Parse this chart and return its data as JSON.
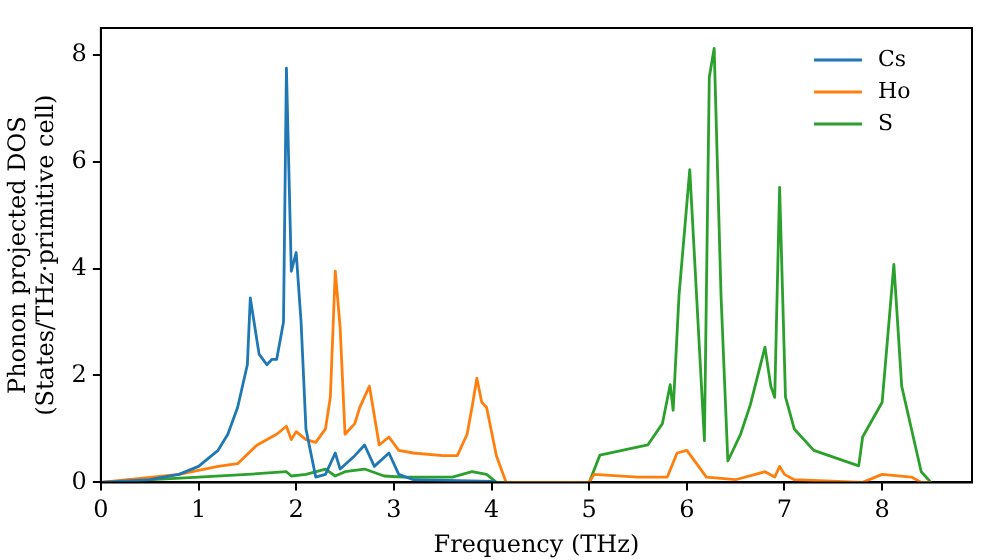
{
  "chart_data": {
    "type": "line",
    "xlabel": "Frequency (THz)",
    "ylabel": "Phonon projected DOS\n(States/THz·primitive cell)",
    "xlim": [
      0,
      8.92
    ],
    "ylim": [
      0,
      8.5
    ],
    "xticks": [
      0,
      1,
      2,
      3,
      4,
      5,
      6,
      7,
      8
    ],
    "yticks": [
      0,
      2,
      4,
      6,
      8
    ],
    "grid": false,
    "legend": "top right",
    "marker": "none",
    "line_style": "solid",
    "series": [
      {
        "name": "Cs",
        "color": "#1f77b4",
        "x": [
          0,
          0.5,
          0.8,
          1.0,
          1.2,
          1.3,
          1.4,
          1.5,
          1.53,
          1.62,
          1.7,
          1.75,
          1.8,
          1.87,
          1.9,
          1.95,
          2.0,
          2.05,
          2.1,
          2.2,
          2.3,
          2.4,
          2.45,
          2.6,
          2.7,
          2.8,
          2.95,
          3.05,
          3.2,
          4.0,
          4.05
        ],
        "values": [
          0,
          0.05,
          0.15,
          0.3,
          0.6,
          0.9,
          1.4,
          2.2,
          3.45,
          2.4,
          2.2,
          2.3,
          2.3,
          3.0,
          7.75,
          3.95,
          4.3,
          3.0,
          1.0,
          0.1,
          0.15,
          0.55,
          0.25,
          0.5,
          0.7,
          0.3,
          0.55,
          0.15,
          0.05,
          0.02,
          0
        ]
      },
      {
        "name": "Ho",
        "color": "#ff7f0e",
        "x": [
          0,
          0.8,
          1.2,
          1.4,
          1.6,
          1.8,
          1.9,
          1.95,
          2.0,
          2.1,
          2.2,
          2.3,
          2.35,
          2.4,
          2.45,
          2.5,
          2.6,
          2.65,
          2.75,
          2.85,
          2.95,
          3.05,
          3.2,
          3.5,
          3.65,
          3.75,
          3.8,
          3.85,
          3.9,
          3.95,
          4.05,
          4.15,
          5.0,
          5.05,
          5.5,
          5.8,
          5.9,
          6.0,
          6.1,
          6.2,
          6.5,
          6.7,
          6.8,
          6.9,
          6.95,
          7.0,
          7.1,
          7.8,
          8.0,
          8.3,
          8.4,
          8.5
        ],
        "values": [
          0,
          0.15,
          0.3,
          0.35,
          0.7,
          0.9,
          1.05,
          0.8,
          0.95,
          0.8,
          0.75,
          1.0,
          1.6,
          3.95,
          2.9,
          0.9,
          1.1,
          1.4,
          1.8,
          0.7,
          0.85,
          0.6,
          0.55,
          0.5,
          0.5,
          0.9,
          1.4,
          1.95,
          1.5,
          1.4,
          0.5,
          0,
          0,
          0.15,
          0.1,
          0.1,
          0.55,
          0.6,
          0.35,
          0.1,
          0.05,
          0.15,
          0.2,
          0.1,
          0.3,
          0.15,
          0.05,
          0,
          0.15,
          0.1,
          0,
          0
        ]
      },
      {
        "name": "S",
        "color": "#2ca02c",
        "x": [
          0,
          1.0,
          1.5,
          1.9,
          1.95,
          2.1,
          2.3,
          2.4,
          2.5,
          2.7,
          2.9,
          3.1,
          3.6,
          3.8,
          3.95,
          4.05,
          4.9,
          5.0,
          5.11,
          5.6,
          5.75,
          5.83,
          5.86,
          5.92,
          6.03,
          6.18,
          6.23,
          6.28,
          6.35,
          6.42,
          6.55,
          6.65,
          6.8,
          6.86,
          6.9,
          6.95,
          7.01,
          7.1,
          7.3,
          7.76,
          7.8,
          8.0,
          8.12,
          8.2,
          8.3,
          8.4,
          8.5
        ],
        "values": [
          0,
          0.1,
          0.15,
          0.2,
          0.12,
          0.15,
          0.25,
          0.12,
          0.2,
          0.25,
          0.12,
          0.1,
          0.1,
          0.2,
          0.15,
          0,
          0,
          0,
          0.51,
          0.7,
          1.1,
          1.83,
          1.35,
          3.5,
          5.85,
          0.78,
          7.58,
          8.12,
          3.5,
          0.4,
          0.9,
          1.45,
          2.53,
          1.8,
          1.59,
          5.52,
          1.6,
          1.0,
          0.6,
          0.31,
          0.85,
          1.5,
          4.08,
          1.8,
          1.0,
          0.2,
          0
        ]
      }
    ]
  }
}
